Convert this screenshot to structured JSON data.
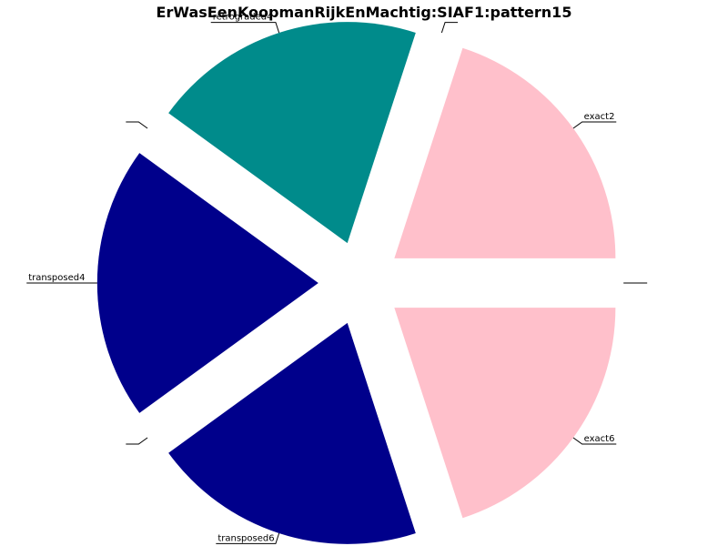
{
  "chart_data": {
    "type": "pie",
    "title": "ErWasEenKoopmanRijkEnMachtig:SIAF1:pattern15",
    "slices": [
      {
        "label": "",
        "value": 0,
        "color": "#ffffff"
      },
      {
        "label": "exact2",
        "value": 1,
        "color": "#ffc0cb"
      },
      {
        "label": "",
        "value": 0,
        "color": "#ffffff"
      },
      {
        "label": "retrograded4",
        "value": 1,
        "color": "#008b8b"
      },
      {
        "label": "",
        "value": 0,
        "color": "#ffffff"
      },
      {
        "label": "transposed4",
        "value": 1,
        "color": "#00008b"
      },
      {
        "label": "",
        "value": 0,
        "color": "#ffffff"
      },
      {
        "label": "transposed6",
        "value": 1,
        "color": "#00008b"
      },
      {
        "label": "exact6",
        "value": 1,
        "color": "#ffc0cb"
      }
    ],
    "start_angle_deg": 0,
    "direction": "counterclockwise",
    "legend": "none"
  }
}
